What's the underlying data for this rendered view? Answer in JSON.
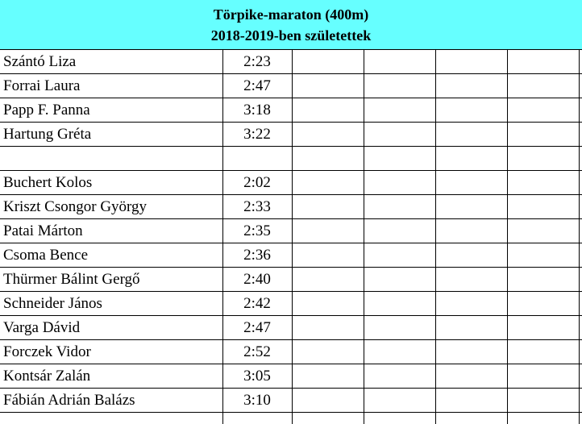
{
  "header": {
    "title": "Törpike-maraton (400m)",
    "subtitle": "2018-2019-ben születettek"
  },
  "rows": [
    {
      "name": "Szántó Liza",
      "time": "2:23"
    },
    {
      "name": "Forrai Laura",
      "time": "2:47"
    },
    {
      "name": "Papp F. Panna",
      "time": "3:18"
    },
    {
      "name": "Hartung Gréta",
      "time": "3:22"
    },
    {
      "name": "",
      "time": ""
    },
    {
      "name": "Buchert Kolos",
      "time": "2:02"
    },
    {
      "name": "Kriszt Csongor György",
      "time": "2:33"
    },
    {
      "name": "Patai Márton",
      "time": "2:35"
    },
    {
      "name": "Csoma Bence",
      "time": "2:36"
    },
    {
      "name": "Thürmer Bálint Gergő",
      "time": "2:40"
    },
    {
      "name": "Schneider János",
      "time": "2:42"
    },
    {
      "name": "Varga Dávid",
      "time": "2:47"
    },
    {
      "name": "Forczek Vidor",
      "time": "2:52"
    },
    {
      "name": "Kontsár Zalán",
      "time": "3:05"
    },
    {
      "name": "Fábián Adrián Balázs",
      "time": "3:10"
    }
  ]
}
